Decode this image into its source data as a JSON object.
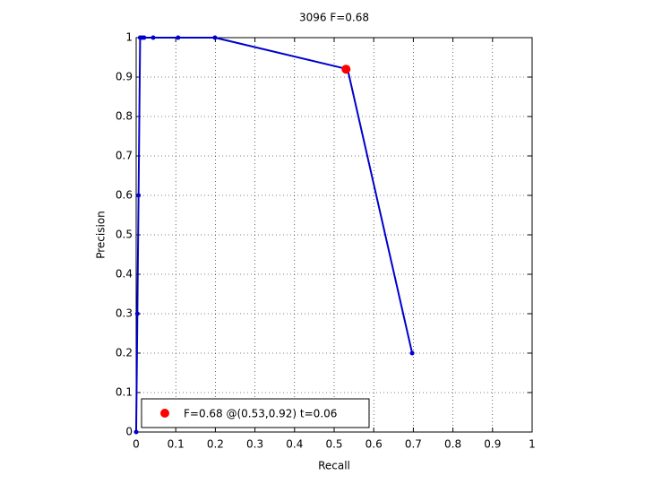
{
  "chart_data": {
    "type": "line",
    "title": "3096 F=0.68",
    "xlabel": "Recall",
    "ylabel": "Precision",
    "xlim": [
      0,
      1
    ],
    "ylim": [
      0,
      1
    ],
    "xticks": [
      0,
      0.1,
      0.2,
      0.3,
      0.4,
      0.5,
      0.6,
      0.7,
      0.8,
      0.9,
      1
    ],
    "yticks": [
      0,
      0.1,
      0.2,
      0.3,
      0.4,
      0.5,
      0.6,
      0.7,
      0.8,
      0.9,
      1
    ],
    "grid": true,
    "legend": "lower left",
    "series": [
      {
        "color": "#0000cc",
        "x": [
          0,
          0.003,
          0.006,
          0.01,
          0.015,
          0.02,
          0.043,
          0.106,
          0.199,
          0.534,
          0.697
        ],
        "values": [
          0,
          0.3,
          0.6,
          1,
          1,
          1,
          1,
          1,
          1,
          0.92,
          0.2
        ]
      },
      {
        "name": "F=0.68 @(0.53,0.92) t=0.06",
        "color": "#ff0000",
        "x": [
          0.53
        ],
        "values": [
          0.92
        ]
      }
    ]
  }
}
